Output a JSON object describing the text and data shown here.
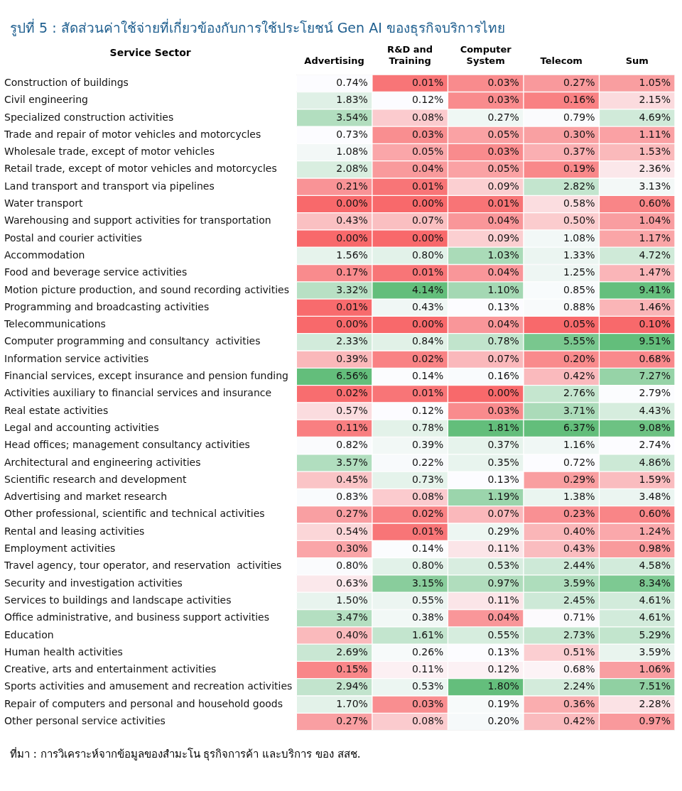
{
  "chart_data": {
    "type": "heatmap",
    "title": "รูปที่ 5 : สัดส่วนค่าใช้จ่ายที่เกี่ยวข้องกับการใช้ประโยชน์ Gen AI ของธุรกิจบริการไทย",
    "ylabel": "Service Sector",
    "categories": [
      "Advertising",
      "R&D and Training",
      "Computer System",
      "Telecom",
      "Sum"
    ],
    "y_categories": [
      "Construction of buildings",
      "Civil engineering",
      "Specialized construction activities",
      "Trade and repair of motor vehicles and motorcycles",
      "Wholesale trade, except of motor vehicles",
      "Retail trade, except of motor vehicles and motorcycles",
      "Land transport and transport via pipelines",
      "Water transport",
      "Warehousing and support activities for transportation",
      "Postal and courier activities",
      "Accommodation",
      "Food and beverage service activities",
      "Motion picture production, and sound recording activities",
      "Programming and broadcasting activities",
      "Telecommunications",
      "Computer programming and consultancy  activities",
      "Information service activities",
      "Financial services, except insurance and pension funding",
      "Activities auxiliary to financial services and insurance",
      "Real estate activities",
      "Legal and accounting activities",
      "Head offices; management consultancy activities",
      "Architectural and engineering activities",
      "Scientific research and development",
      "Advertising and market research",
      "Other professional, scientific and technical activities",
      "Rental and leasing activities",
      "Employment activities",
      "Travel agency, tour operator, and reservation  activities",
      "Security and investigation activities",
      "Services to buildings and landscape activities",
      "Office administrative, and business support activities",
      "Education",
      "Human health activities",
      "Creative, arts and entertainment activities",
      "Sports activities and amusement and recreation activities",
      "Repair of computers and personal and household goods",
      "Other personal service activities"
    ],
    "cells": [
      [
        0.74,
        0.01,
        0.03,
        0.27,
        1.05
      ],
      [
        1.83,
        0.12,
        0.03,
        0.16,
        2.15
      ],
      [
        3.54,
        0.08,
        0.27,
        0.79,
        4.69
      ],
      [
        0.73,
        0.03,
        0.05,
        0.3,
        1.11
      ],
      [
        1.08,
        0.05,
        0.03,
        0.37,
        1.53
      ],
      [
        2.08,
        0.04,
        0.05,
        0.19,
        2.36
      ],
      [
        0.21,
        0.01,
        0.09,
        2.82,
        3.13
      ],
      [
        0.0,
        0.0,
        0.01,
        0.58,
        0.6
      ],
      [
        0.43,
        0.07,
        0.04,
        0.5,
        1.04
      ],
      [
        0.0,
        0.0,
        0.09,
        1.08,
        1.17
      ],
      [
        1.56,
        0.8,
        1.03,
        1.33,
        4.72
      ],
      [
        0.17,
        0.01,
        0.04,
        1.25,
        1.47
      ],
      [
        3.32,
        4.14,
        1.1,
        0.85,
        9.41
      ],
      [
        0.01,
        0.43,
        0.13,
        0.88,
        1.46
      ],
      [
        0.0,
        0.0,
        0.04,
        0.05,
        0.1
      ],
      [
        2.33,
        0.84,
        0.78,
        5.55,
        9.51
      ],
      [
        0.39,
        0.02,
        0.07,
        0.2,
        0.68
      ],
      [
        6.56,
        0.14,
        0.16,
        0.42,
        7.27
      ],
      [
        0.02,
        0.01,
        0.0,
        2.76,
        2.79
      ],
      [
        0.57,
        0.12,
        0.03,
        3.71,
        4.43
      ],
      [
        0.11,
        0.78,
        1.81,
        6.37,
        9.08
      ],
      [
        0.82,
        0.39,
        0.37,
        1.16,
        2.74
      ],
      [
        3.57,
        0.22,
        0.35,
        0.72,
        4.86
      ],
      [
        0.45,
        0.73,
        0.13,
        0.29,
        1.59
      ],
      [
        0.83,
        0.08,
        1.19,
        1.38,
        3.48
      ],
      [
        0.27,
        0.02,
        0.07,
        0.23,
        0.6
      ],
      [
        0.54,
        0.01,
        0.29,
        0.4,
        1.24
      ],
      [
        0.3,
        0.14,
        0.11,
        0.43,
        0.98
      ],
      [
        0.8,
        0.8,
        0.53,
        2.44,
        4.58
      ],
      [
        0.63,
        3.15,
        0.97,
        3.59,
        8.34
      ],
      [
        1.5,
        0.55,
        0.11,
        2.45,
        4.61
      ],
      [
        3.47,
        0.38,
        0.04,
        0.71,
        4.61
      ],
      [
        0.4,
        1.61,
        0.55,
        2.73,
        5.29
      ],
      [
        2.69,
        0.26,
        0.13,
        0.51,
        3.59
      ],
      [
        0.15,
        0.11,
        0.12,
        0.68,
        1.06
      ],
      [
        2.94,
        0.53,
        1.8,
        2.24,
        7.51
      ],
      [
        1.7,
        0.03,
        0.19,
        0.36,
        2.28
      ],
      [
        0.27,
        0.08,
        0.2,
        0.42,
        0.97
      ]
    ],
    "cell_labels": [
      [
        "0.74%",
        "0.01%",
        "0.03%",
        "0.27%",
        "1.05%"
      ],
      [
        "1.83%",
        "0.12%",
        "0.03%",
        "0.16%",
        "2.15%"
      ],
      [
        "3.54%",
        "0.08%",
        "0.27%",
        "0.79%",
        "4.69%"
      ],
      [
        "0.73%",
        "0.03%",
        "0.05%",
        "0.30%",
        "1.11%"
      ],
      [
        "1.08%",
        "0.05%",
        "0.03%",
        "0.37%",
        "1.53%"
      ],
      [
        "2.08%",
        "0.04%",
        "0.05%",
        "0.19%",
        "2.36%"
      ],
      [
        "0.21%",
        "0.01%",
        "0.09%",
        "2.82%",
        "3.13%"
      ],
      [
        "0.00%",
        "0.00%",
        "0.01%",
        "0.58%",
        "0.60%"
      ],
      [
        "0.43%",
        "0.07%",
        "0.04%",
        "0.50%",
        "1.04%"
      ],
      [
        "0.00%",
        "0.00%",
        "0.09%",
        "1.08%",
        "1.17%"
      ],
      [
        "1.56%",
        "0.80%",
        "1.03%",
        "1.33%",
        "4.72%"
      ],
      [
        "0.17%",
        "0.01%",
        "0.04%",
        "1.25%",
        "1.47%"
      ],
      [
        "3.32%",
        "4.14%",
        "1.10%",
        "0.85%",
        "9.41%"
      ],
      [
        "0.01%",
        "0.43%",
        "0.13%",
        "0.88%",
        "1.46%"
      ],
      [
        "0.00%",
        "0.00%",
        "0.04%",
        "0.05%",
        "0.10%"
      ],
      [
        "2.33%",
        "0.84%",
        "0.78%",
        "5.55%",
        "9.51%"
      ],
      [
        "0.39%",
        "0.02%",
        "0.07%",
        "0.20%",
        "0.68%"
      ],
      [
        "6.56%",
        "0.14%",
        "0.16%",
        "0.42%",
        "7.27%"
      ],
      [
        "0.02%",
        "0.01%",
        "0.00%",
        "2.76%",
        "2.79%"
      ],
      [
        "0.57%",
        "0.12%",
        "0.03%",
        "3.71%",
        "4.43%"
      ],
      [
        "0.11%",
        "0.78%",
        "1.81%",
        "6.37%",
        "9.08%"
      ],
      [
        "0.82%",
        "0.39%",
        "0.37%",
        "1.16%",
        "2.74%"
      ],
      [
        "3.57%",
        "0.22%",
        "0.35%",
        "0.72%",
        "4.86%"
      ],
      [
        "0.45%",
        "0.73%",
        "0.13%",
        "0.29%",
        "1.59%"
      ],
      [
        "0.83%",
        "0.08%",
        "1.19%",
        "1.38%",
        "3.48%"
      ],
      [
        "0.27%",
        "0.02%",
        "0.07%",
        "0.23%",
        "0.60%"
      ],
      [
        "0.54%",
        "0.01%",
        "0.29%",
        "0.40%",
        "1.24%"
      ],
      [
        "0.30%",
        "0.14%",
        "0.11%",
        "0.43%",
        "0.98%"
      ],
      [
        "0.80%",
        "0.80%",
        "0.53%",
        "2.44%",
        "4.58%"
      ],
      [
        "0.63%",
        "3.15%",
        "0.97%",
        "3.59%",
        "8.34%"
      ],
      [
        "1.50%",
        "0.55%",
        "0.11%",
        "2.45%",
        "4.61%"
      ],
      [
        "3.47%",
        "0.38%",
        "0.04%",
        "0.71%",
        "4.61%"
      ],
      [
        "0.40%",
        "1.61%",
        "0.55%",
        "2.73%",
        "5.29%"
      ],
      [
        "2.69%",
        "0.26%",
        "0.13%",
        "0.51%",
        "3.59%"
      ],
      [
        "0.15%",
        "0.11%",
        "0.12%",
        "0.68%",
        "1.06%"
      ],
      [
        "2.94%",
        "0.53%",
        "1.80%",
        "2.24%",
        "7.51%"
      ],
      [
        "1.70%",
        "0.03%",
        "0.19%",
        "0.36%",
        "2.28%"
      ],
      [
        "0.27%",
        "0.08%",
        "0.20%",
        "0.42%",
        "0.97%"
      ]
    ],
    "annotations": [
      "ที่มา : การวิเคราะห์จากข้อมูลของสำมะโน ธุรกิจการค้า และบริการ ของ สสช."
    ]
  }
}
